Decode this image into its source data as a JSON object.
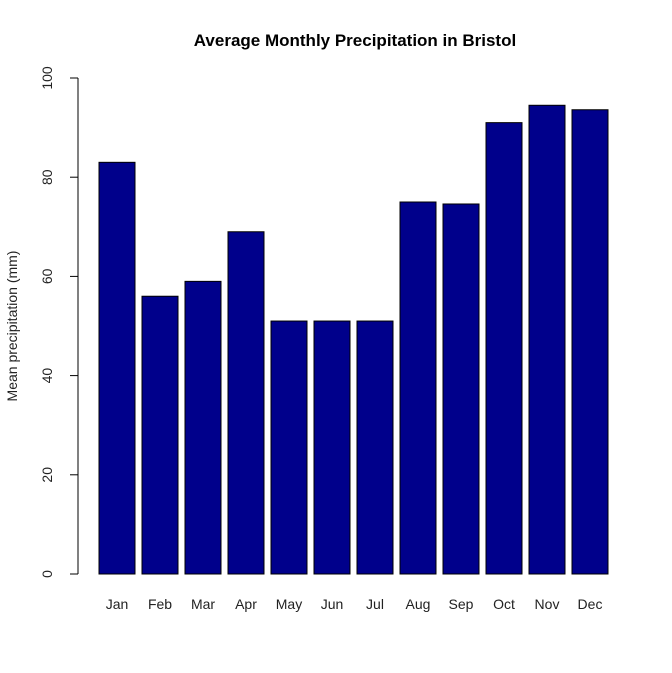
{
  "chart_data": {
    "type": "bar",
    "title": "Average Monthly Precipitation in Bristol",
    "xlabel": "",
    "ylabel": "Mean precipitation (mm)",
    "categories": [
      "Jan",
      "Feb",
      "Mar",
      "Apr",
      "May",
      "Jun",
      "Jul",
      "Aug",
      "Sep",
      "Oct",
      "Nov",
      "Dec"
    ],
    "values": [
      83,
      56,
      59,
      69,
      51,
      51,
      51,
      75,
      74.6,
      91,
      94.5,
      93.6
    ],
    "ylim": [
      0,
      100
    ],
    "yticks": [
      "0",
      "20",
      "40",
      "60",
      "80",
      "100"
    ],
    "grid": false,
    "bar_color": "#00008b",
    "bar_border_color": "#000000"
  }
}
